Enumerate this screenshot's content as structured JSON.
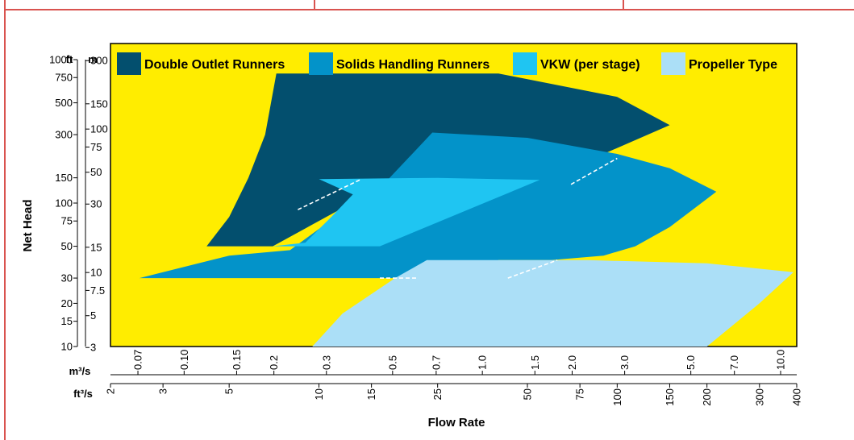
{
  "chart_data": {
    "type": "area",
    "xlabel": "Flow Rate",
    "ylabel": "Net Head",
    "x_axes": [
      {
        "unit": "m³/s",
        "ticks": [
          "0.07",
          "0.10",
          "0.15",
          "0.2",
          "0.3",
          "0.5",
          "0.7",
          "1.0",
          "1.5",
          "2.0",
          "3.0",
          "5.0",
          "7.0",
          "10.0"
        ],
        "tick_values": [
          0.07,
          0.1,
          0.15,
          0.2,
          0.3,
          0.5,
          0.7,
          1.0,
          1.5,
          2.0,
          3.0,
          5.0,
          7.0,
          10.0
        ]
      },
      {
        "unit": "ft³/s",
        "ticks": [
          "2",
          "3",
          "5",
          "10",
          "15",
          "25",
          "50",
          "75",
          "100",
          "150",
          "200",
          "300",
          "400"
        ],
        "tick_values": [
          2,
          3,
          5,
          10,
          15,
          25,
          50,
          75,
          100,
          150,
          200,
          300,
          400
        ]
      }
    ],
    "y_axes": [
      {
        "unit": "ft",
        "ticks": [
          "1000",
          "750",
          "500",
          "300",
          "150",
          "100",
          "75",
          "50",
          "30",
          "20",
          "15",
          "10"
        ],
        "tick_values": [
          1000,
          750,
          500,
          300,
          150,
          100,
          75,
          50,
          30,
          20,
          15,
          10
        ]
      },
      {
        "unit": "m",
        "ticks": [
          "300",
          "150",
          "100",
          "75",
          "50",
          "30",
          "15",
          "10",
          "7.5",
          "5",
          "3"
        ],
        "tick_values": [
          300,
          150,
          100,
          75,
          50,
          30,
          15,
          10,
          7.5,
          5,
          3
        ]
      }
    ],
    "x_range_ft3s": [
      2,
      400
    ],
    "y_range_ft": [
      10,
      1000
    ],
    "scale": "log-log",
    "legend_position": "top",
    "series": [
      {
        "name": "Double Outlet Runners",
        "color": "#034f6e",
        "boundary": [
          [
            4.2,
            50
          ],
          [
            5,
            80
          ],
          [
            5.8,
            150
          ],
          [
            6.6,
            300
          ],
          [
            7.2,
            800
          ],
          [
            40,
            800
          ],
          [
            100,
            550
          ],
          [
            150,
            350
          ],
          [
            70,
            175
          ],
          [
            55,
            145
          ],
          [
            17,
            145
          ],
          [
            14,
            110
          ],
          [
            7,
            50
          ]
        ]
      },
      {
        "name": "Solids Handling Runners",
        "color": "#0393c9",
        "boundary": [
          [
            2.5,
            30
          ],
          [
            5,
            43
          ],
          [
            8,
            47
          ],
          [
            14,
            110
          ],
          [
            17,
            145
          ],
          [
            24,
            310
          ],
          [
            50,
            285
          ],
          [
            100,
            220
          ],
          [
            150,
            175
          ],
          [
            215,
            120
          ],
          [
            150,
            68
          ],
          [
            115,
            50
          ],
          [
            90,
            43
          ],
          [
            60,
            40
          ],
          [
            40,
            40
          ],
          [
            25,
            30
          ]
        ]
      },
      {
        "name": "VKW (per stage)",
        "color": "#1fc5f2",
        "boundary": [
          [
            7,
            50
          ],
          [
            9,
            53
          ],
          [
            11,
            80
          ],
          [
            13,
            115
          ],
          [
            10,
            147
          ],
          [
            25,
            150
          ],
          [
            55,
            145
          ],
          [
            16,
            50
          ]
        ]
      },
      {
        "name": "Propeller Type",
        "color": "#abdff7",
        "boundary": [
          [
            9.5,
            10
          ],
          [
            12,
            17
          ],
          [
            18,
            30
          ],
          [
            23,
            40
          ],
          [
            80,
            40
          ],
          [
            200,
            38
          ],
          [
            390,
            33
          ],
          [
            300,
            20
          ],
          [
            200,
            10
          ]
        ]
      }
    ],
    "dashed_lines": [
      [
        [
          8.5,
          90
        ],
        [
          13.7,
          145
        ]
      ],
      [
        [
          16,
          30
        ],
        [
          21.5,
          30
        ]
      ],
      [
        [
          43,
          30
        ],
        [
          63,
          40
        ]
      ],
      [
        [
          70,
          135
        ],
        [
          100,
          205
        ]
      ]
    ]
  }
}
